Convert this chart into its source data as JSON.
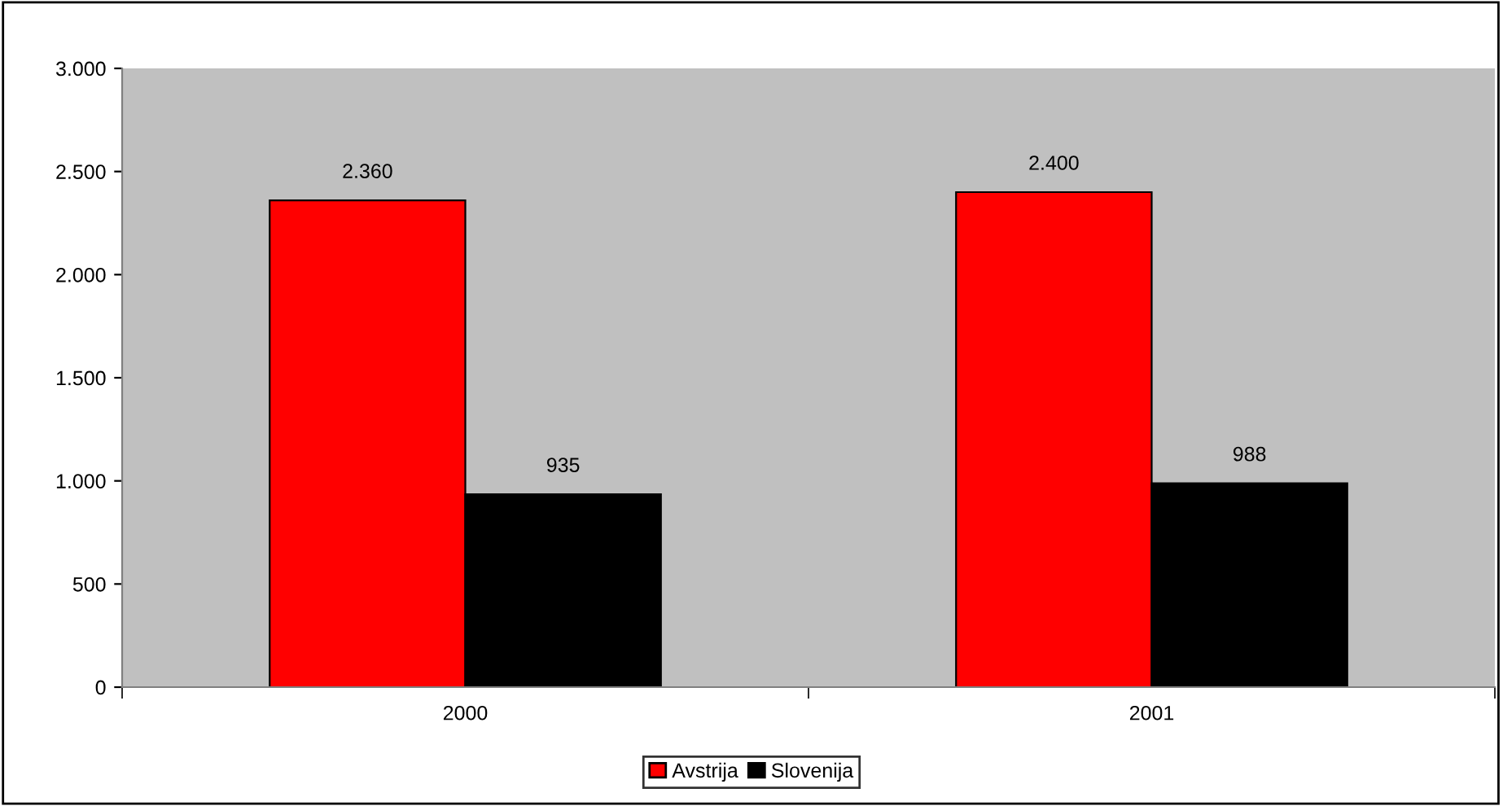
{
  "chart_data": {
    "type": "bar",
    "categories": [
      "2000",
      "2001"
    ],
    "series": [
      {
        "name": "Avstrija",
        "color": "#ff0000",
        "values": [
          2360,
          2400
        ],
        "value_labels": [
          "2.360",
          "2.400"
        ]
      },
      {
        "name": "Slovenija",
        "color": "#000000",
        "values": [
          935,
          988
        ],
        "value_labels": [
          "935",
          "988"
        ]
      }
    ],
    "ylim": [
      0,
      3000
    ],
    "yticks": [
      {
        "value": 0,
        "label": "0"
      },
      {
        "value": 500,
        "label": "500"
      },
      {
        "value": 1000,
        "label": "1.000"
      },
      {
        "value": 1500,
        "label": "1.500"
      },
      {
        "value": 2000,
        "label": "2.000"
      },
      {
        "value": 2500,
        "label": "2.500"
      },
      {
        "value": 3000,
        "label": "3.000"
      }
    ],
    "grid": false,
    "legend": "bottom"
  }
}
